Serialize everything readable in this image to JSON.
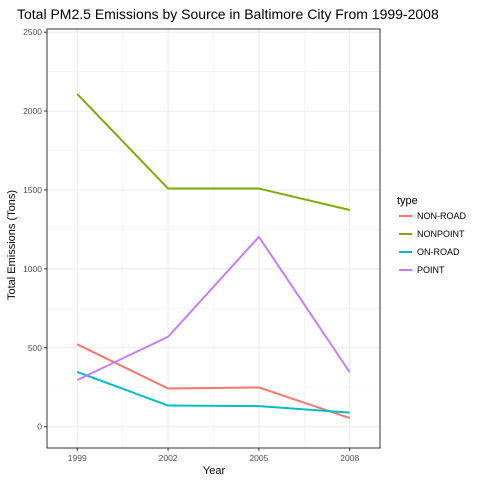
{
  "chart_data": {
    "type": "line",
    "title": "Total PM2.5 Emissions by Source in Baltimore City From 1999-2008",
    "xlabel": "Year",
    "ylabel": "Total Emissions (Tons)",
    "x": [
      1999,
      2002,
      2005,
      2008
    ],
    "xlim": [
      1998,
      2009
    ],
    "ylim": [
      -135,
      2520
    ],
    "y_ticks": [
      0,
      500,
      1000,
      1500,
      2000,
      2500
    ],
    "grid": true,
    "legend": {
      "title": "type",
      "placement": "right"
    },
    "series": [
      {
        "name": "NON-ROAD",
        "color": "#F8766D",
        "values": [
          522,
          242,
          249,
          55
        ]
      },
      {
        "name": "NONPOINT",
        "color": "#7CAE00",
        "values": [
          2108,
          1509,
          1509,
          1373
        ]
      },
      {
        "name": "ON-ROAD",
        "color": "#00BFC4",
        "values": [
          347,
          134,
          130,
          89
        ]
      },
      {
        "name": "POINT",
        "color": "#C77CFF",
        "values": [
          296,
          570,
          1203,
          345
        ]
      }
    ]
  }
}
